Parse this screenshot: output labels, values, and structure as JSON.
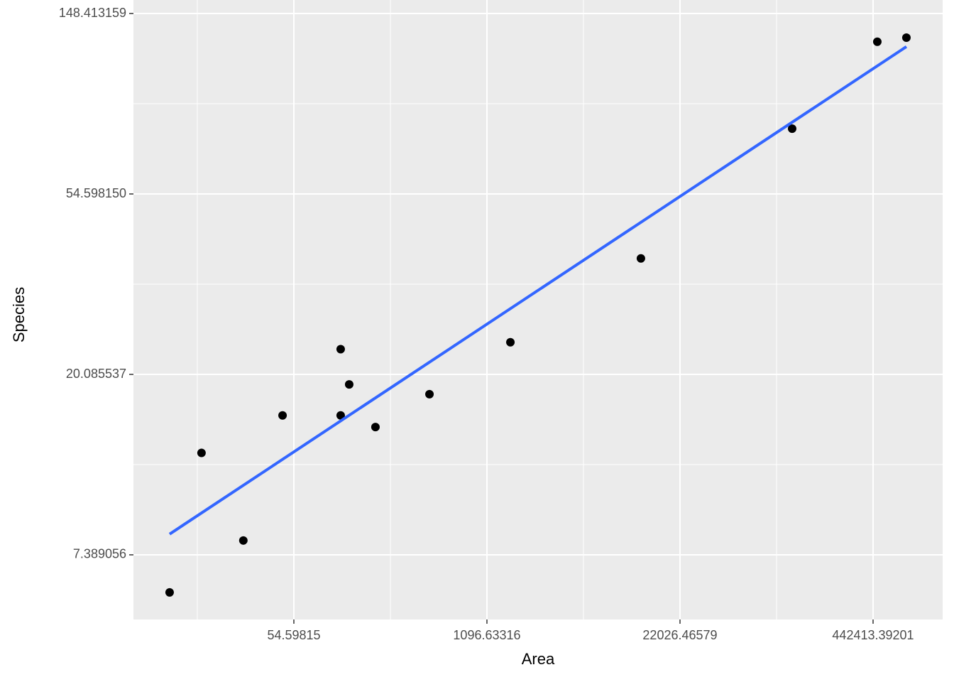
{
  "chart_data": {
    "type": "scatter",
    "xlabel": "Area",
    "ylabel": "Species",
    "xlog": true,
    "ylog": true,
    "grid": true,
    "color": "#000000",
    "x": [
      7.92,
      13.0,
      24.9,
      45.8,
      113,
      113,
      129,
      194,
      449,
      1579,
      12000,
      125800,
      472500,
      742700
    ],
    "values": [
      6.0,
      13.0,
      8.0,
      16.0,
      23.1,
      16.0,
      19.0,
      15.0,
      18.0,
      24.0,
      38.2,
      78.4,
      126.9,
      129.8
    ],
    "trend": {
      "color": "#3366ff",
      "x": [
        7.92,
        742700
      ],
      "values": [
        8.29,
        123.5
      ]
    },
    "xlim": [
      4.515,
      1304100
    ],
    "ylim": [
      5.164,
      159.95
    ],
    "xticks": [
      54.59815,
      1096.63316,
      22026.46579,
      442413.39201
    ],
    "yticks": [
      7.389056,
      20.085537,
      {
        "value": 54.59815,
        "label": "54.598150"
      },
      148.413159
    ],
    "x_minor_grid": [
      12.18249,
      244.6919,
      4914.769,
      98715.77
    ],
    "y_minor_grid": [
      12.18249,
      33.11545,
      90.01713
    ]
  }
}
